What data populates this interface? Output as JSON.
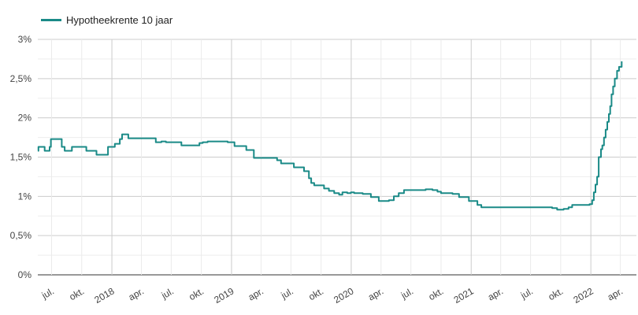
{
  "legend": {
    "label": "Hypotheekrente 10 jaar",
    "color": "#1a8a87"
  },
  "chart_data": {
    "type": "line",
    "series": [
      {
        "name": "Hypotheekrente 10 jaar"
      }
    ],
    "ylim": [
      0,
      3
    ],
    "yticks": [
      {
        "value": 0,
        "label": "0%"
      },
      {
        "value": 0.5,
        "label": "0,5%"
      },
      {
        "value": 1,
        "label": "1%"
      },
      {
        "value": 1.5,
        "label": "1,5%"
      },
      {
        "value": 2,
        "label": "2%"
      },
      {
        "value": 2.5,
        "label": "2,5%"
      },
      {
        "value": 3,
        "label": "3%"
      }
    ],
    "xlim": [
      "2017-05-20",
      "2022-05-20"
    ],
    "xticks": [
      {
        "date": "2017-07-01",
        "label": "jul.",
        "major": false
      },
      {
        "date": "2017-10-01",
        "label": "okt.",
        "major": false
      },
      {
        "date": "2018-01-01",
        "label": "2018",
        "major": true
      },
      {
        "date": "2018-04-01",
        "label": "apr.",
        "major": false
      },
      {
        "date": "2018-07-01",
        "label": "jul.",
        "major": false
      },
      {
        "date": "2018-10-01",
        "label": "okt.",
        "major": false
      },
      {
        "date": "2019-01-01",
        "label": "2019",
        "major": true
      },
      {
        "date": "2019-04-01",
        "label": "apr.",
        "major": false
      },
      {
        "date": "2019-07-01",
        "label": "jul.",
        "major": false
      },
      {
        "date": "2019-10-01",
        "label": "okt.",
        "major": false
      },
      {
        "date": "2020-01-01",
        "label": "2020",
        "major": true
      },
      {
        "date": "2020-04-01",
        "label": "apr.",
        "major": false
      },
      {
        "date": "2020-07-01",
        "label": "jul.",
        "major": false
      },
      {
        "date": "2020-10-01",
        "label": "okt.",
        "major": false
      },
      {
        "date": "2021-01-01",
        "label": "2021",
        "major": true
      },
      {
        "date": "2021-04-01",
        "label": "apr.",
        "major": false
      },
      {
        "date": "2021-07-01",
        "label": "jul.",
        "major": false
      },
      {
        "date": "2021-10-01",
        "label": "okt.",
        "major": false
      },
      {
        "date": "2022-01-01",
        "label": "2022",
        "major": true
      },
      {
        "date": "2022-04-01",
        "label": "apr.",
        "major": false
      }
    ],
    "points": [
      [
        "2017-05-20",
        1.58
      ],
      [
        "2017-05-22",
        1.63
      ],
      [
        "2017-06-10",
        1.58
      ],
      [
        "2017-06-25",
        1.63
      ],
      [
        "2017-06-29",
        1.73
      ],
      [
        "2017-08-01",
        1.63
      ],
      [
        "2017-08-10",
        1.58
      ],
      [
        "2017-09-01",
        1.63
      ],
      [
        "2017-10-15",
        1.58
      ],
      [
        "2017-11-15",
        1.53
      ],
      [
        "2017-12-20",
        1.63
      ],
      [
        "2018-01-10",
        1.67
      ],
      [
        "2018-01-25",
        1.73
      ],
      [
        "2018-02-01",
        1.79
      ],
      [
        "2018-02-20",
        1.74
      ],
      [
        "2018-05-15",
        1.69
      ],
      [
        "2018-06-01",
        1.7
      ],
      [
        "2018-06-15",
        1.69
      ],
      [
        "2018-08-01",
        1.65
      ],
      [
        "2018-09-25",
        1.68
      ],
      [
        "2018-10-05",
        1.69
      ],
      [
        "2018-10-20",
        1.7
      ],
      [
        "2018-12-20",
        1.69
      ],
      [
        "2019-01-10",
        1.64
      ],
      [
        "2019-02-15",
        1.59
      ],
      [
        "2019-03-10",
        1.49
      ],
      [
        "2019-05-20",
        1.46
      ],
      [
        "2019-06-01",
        1.42
      ],
      [
        "2019-07-10",
        1.37
      ],
      [
        "2019-08-10",
        1.32
      ],
      [
        "2019-08-25",
        1.23
      ],
      [
        "2019-09-01",
        1.17
      ],
      [
        "2019-09-10",
        1.14
      ],
      [
        "2019-10-10",
        1.1
      ],
      [
        "2019-10-25",
        1.07
      ],
      [
        "2019-11-10",
        1.04
      ],
      [
        "2019-11-25",
        1.02
      ],
      [
        "2019-12-05",
        1.05
      ],
      [
        "2019-12-20",
        1.04
      ],
      [
        "2019-12-31",
        1.05
      ],
      [
        "2020-01-10",
        1.04
      ],
      [
        "2020-02-05",
        1.03
      ],
      [
        "2020-03-01",
        0.99
      ],
      [
        "2020-03-25",
        0.94
      ],
      [
        "2020-04-25",
        0.95
      ],
      [
        "2020-05-10",
        1.0
      ],
      [
        "2020-05-25",
        1.04
      ],
      [
        "2020-06-10",
        1.08
      ],
      [
        "2020-08-15",
        1.09
      ],
      [
        "2020-09-05",
        1.08
      ],
      [
        "2020-09-20",
        1.06
      ],
      [
        "2020-10-01",
        1.04
      ],
      [
        "2020-11-05",
        1.03
      ],
      [
        "2020-11-25",
        0.99
      ],
      [
        "2020-12-25",
        0.94
      ],
      [
        "2021-01-20",
        0.89
      ],
      [
        "2021-02-01",
        0.86
      ],
      [
        "2021-09-05",
        0.85
      ],
      [
        "2021-09-20",
        0.83
      ],
      [
        "2021-10-10",
        0.84
      ],
      [
        "2021-10-25",
        0.86
      ],
      [
        "2021-11-05",
        0.89
      ],
      [
        "2021-12-28",
        0.9
      ],
      [
        "2022-01-05",
        0.95
      ],
      [
        "2022-01-10",
        1.05
      ],
      [
        "2022-01-15",
        1.15
      ],
      [
        "2022-01-20",
        1.25
      ],
      [
        "2022-01-25",
        1.5
      ],
      [
        "2022-02-01",
        1.6
      ],
      [
        "2022-02-05",
        1.65
      ],
      [
        "2022-02-10",
        1.75
      ],
      [
        "2022-02-15",
        1.85
      ],
      [
        "2022-02-20",
        1.95
      ],
      [
        "2022-02-25",
        2.05
      ],
      [
        "2022-03-01",
        2.15
      ],
      [
        "2022-03-05",
        2.3
      ],
      [
        "2022-03-10",
        2.4
      ],
      [
        "2022-03-15",
        2.5
      ],
      [
        "2022-03-22",
        2.6
      ],
      [
        "2022-03-28",
        2.65
      ],
      [
        "2022-04-05",
        2.72
      ]
    ],
    "grid": true,
    "legend_position": "top-left"
  }
}
